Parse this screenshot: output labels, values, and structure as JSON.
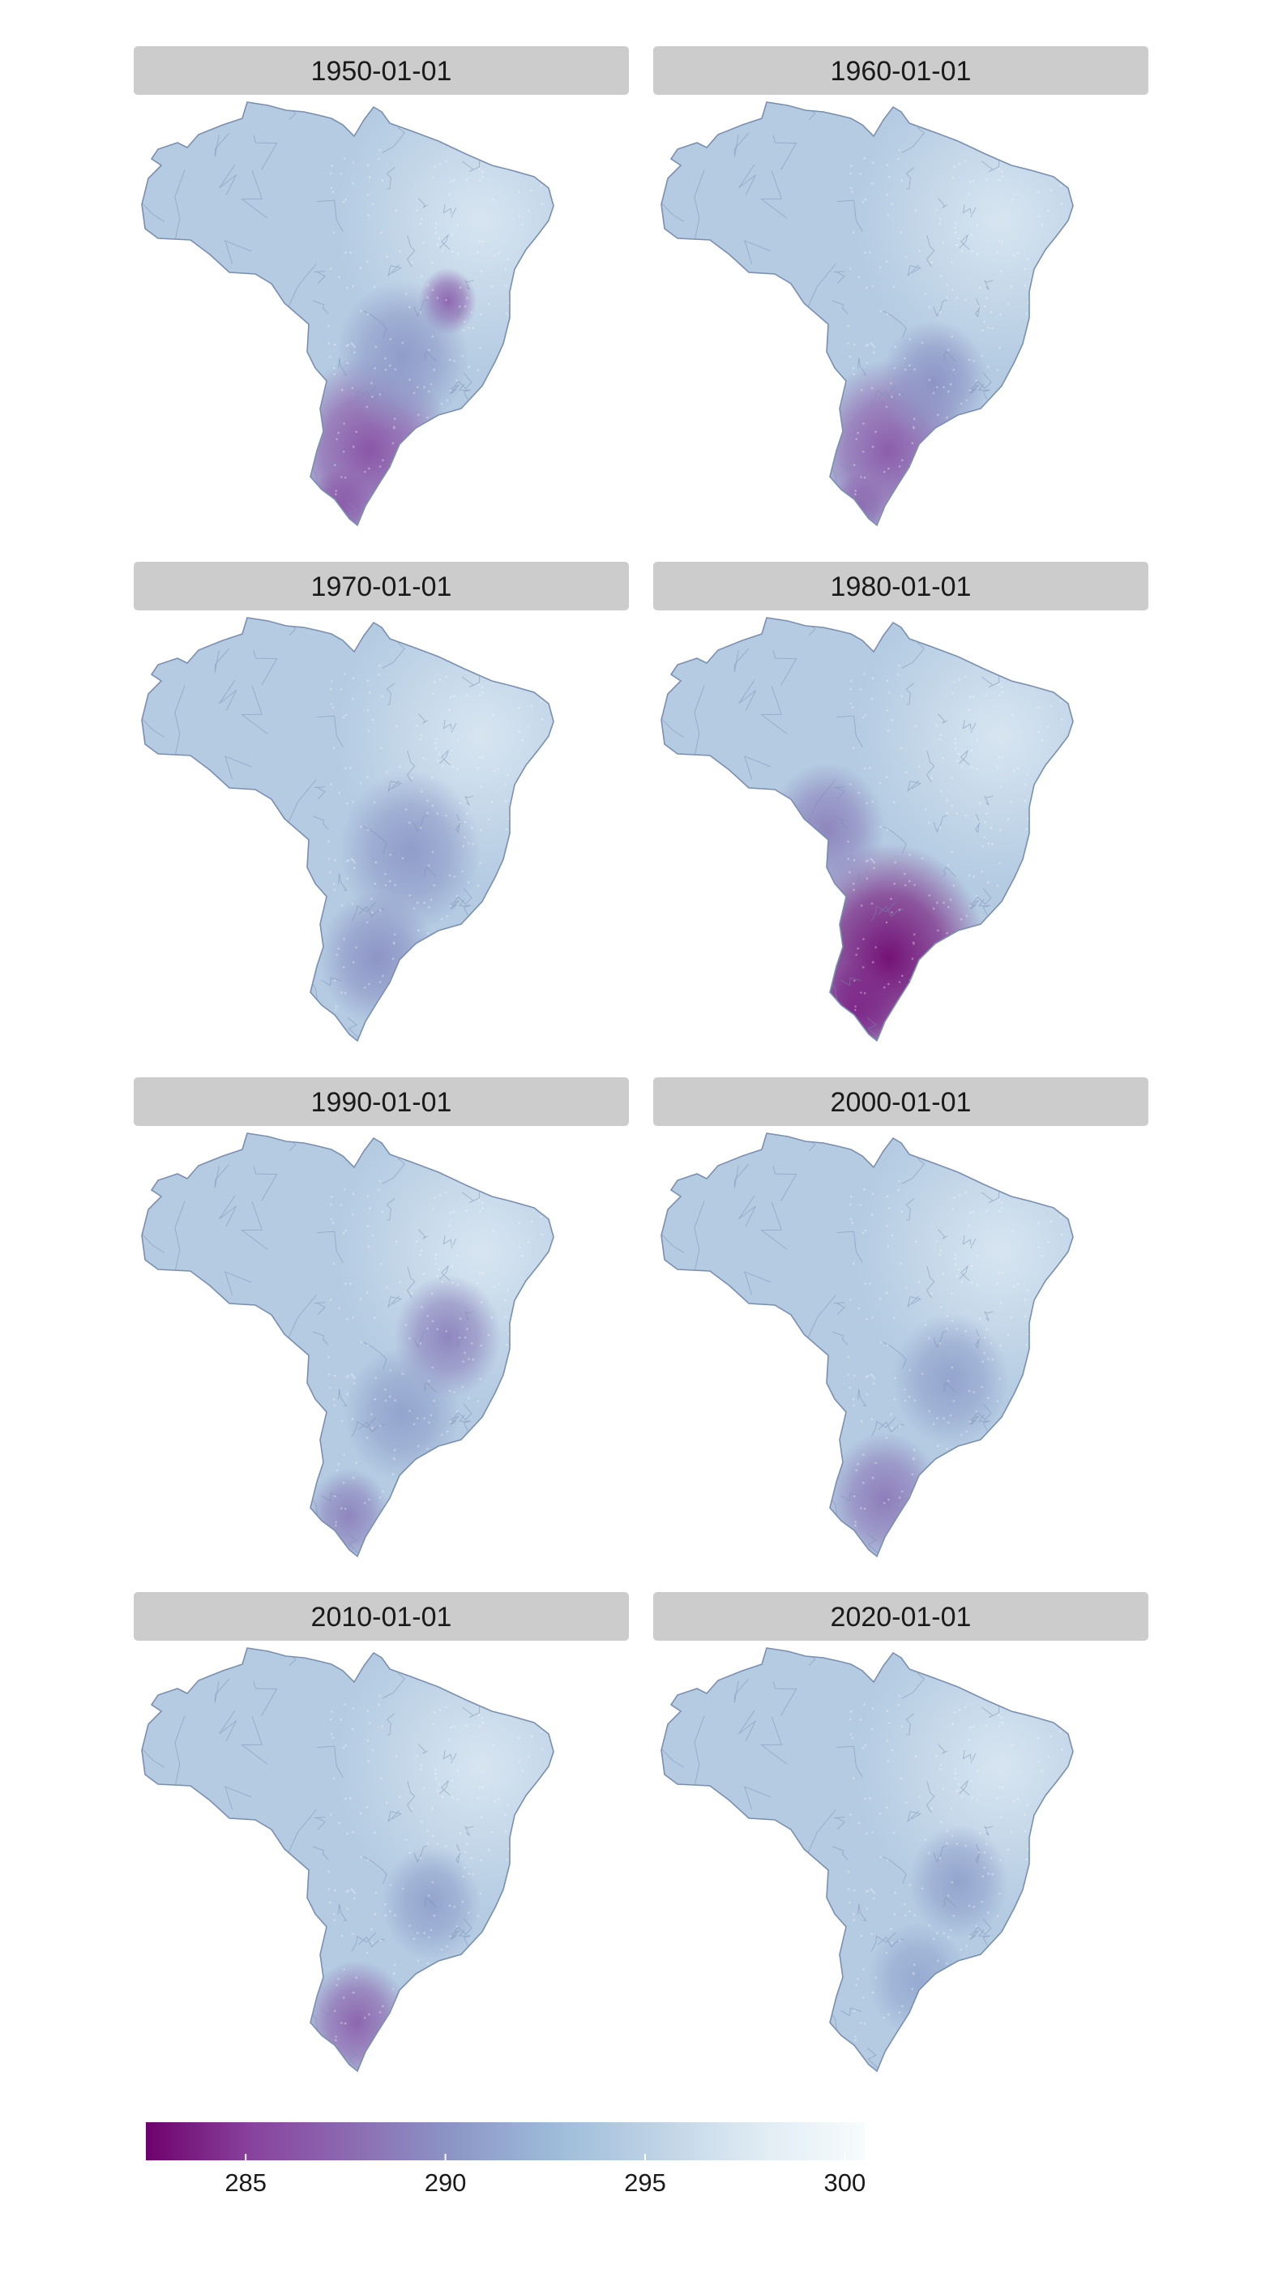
{
  "panels": [
    {
      "label": "1950-01-01",
      "cool_spots": [
        {
          "u": 0.55,
          "v": 0.82,
          "r": 0.2,
          "t": 286.0
        },
        {
          "u": 0.74,
          "v": 0.47,
          "r": 0.07,
          "t": 287.0
        },
        {
          "u": 0.63,
          "v": 0.6,
          "r": 0.16,
          "t": 290.5
        },
        {
          "u": 0.48,
          "v": 0.95,
          "r": 0.08,
          "t": 286.5
        }
      ]
    },
    {
      "label": "1960-01-01",
      "cool_spots": [
        {
          "u": 0.55,
          "v": 0.82,
          "r": 0.19,
          "t": 286.5
        },
        {
          "u": 0.66,
          "v": 0.66,
          "r": 0.13,
          "t": 290.0
        },
        {
          "u": 0.48,
          "v": 0.95,
          "r": 0.07,
          "t": 287.5
        }
      ]
    },
    {
      "label": "1970-01-01",
      "cool_spots": [
        {
          "u": 0.65,
          "v": 0.55,
          "r": 0.17,
          "t": 290.5
        },
        {
          "u": 0.57,
          "v": 0.8,
          "r": 0.14,
          "t": 290.0
        }
      ]
    },
    {
      "label": "1980-01-01",
      "cool_spots": [
        {
          "u": 0.55,
          "v": 0.8,
          "r": 0.24,
          "t": 282.8
        },
        {
          "u": 0.4,
          "v": 0.5,
          "r": 0.14,
          "t": 289.0
        },
        {
          "u": 0.47,
          "v": 0.92,
          "r": 0.1,
          "t": 284.0
        }
      ]
    },
    {
      "label": "1990-01-01",
      "cool_spots": [
        {
          "u": 0.74,
          "v": 0.48,
          "r": 0.13,
          "t": 289.0
        },
        {
          "u": 0.5,
          "v": 0.9,
          "r": 0.1,
          "t": 289.0
        },
        {
          "u": 0.63,
          "v": 0.66,
          "r": 0.14,
          "t": 291.0
        }
      ]
    },
    {
      "label": "2000-01-01",
      "cool_spots": [
        {
          "u": 0.54,
          "v": 0.86,
          "r": 0.14,
          "t": 288.5
        },
        {
          "u": 0.7,
          "v": 0.58,
          "r": 0.14,
          "t": 291.0
        }
      ]
    },
    {
      "label": "2010-01-01",
      "cool_spots": [
        {
          "u": 0.52,
          "v": 0.88,
          "r": 0.13,
          "t": 287.0
        },
        {
          "u": 0.7,
          "v": 0.6,
          "r": 0.12,
          "t": 291.0
        }
      ]
    },
    {
      "label": "2020-01-01",
      "cool_spots": [
        {
          "u": 0.72,
          "v": 0.55,
          "r": 0.12,
          "t": 291.0
        },
        {
          "u": 0.62,
          "v": 0.78,
          "r": 0.12,
          "t": 291.5
        }
      ]
    }
  ],
  "legend": {
    "min": 282.5,
    "max": 300.5,
    "ticks": [
      285,
      290,
      295,
      300
    ],
    "tick_labels": [
      "285",
      "290",
      "295",
      "300"
    ],
    "palette": [
      "#6e016b",
      "#88419d",
      "#8c6bb1",
      "#8c96c6",
      "#9ebcda",
      "#bfd3e6",
      "#e0ecf4",
      "#f7fcfd"
    ]
  },
  "colors": {
    "strip_background": "#cccccc",
    "strip_text": "#1a1a1a",
    "border_line": "#7a8fb0",
    "base_fill_temperature": 294.5
  }
}
